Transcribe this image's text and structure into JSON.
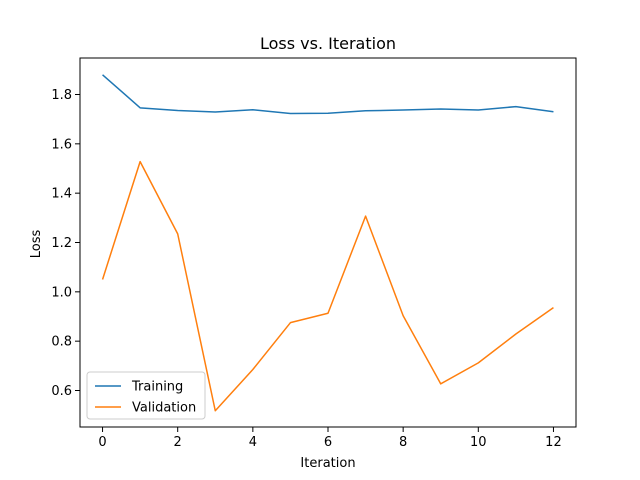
{
  "chart_data": {
    "type": "line",
    "title": "Loss vs. Iteration",
    "xlabel": "Iteration",
    "ylabel": "Loss",
    "xlim": [
      -0.6,
      12.6
    ],
    "ylim": [
      0.452,
      1.948
    ],
    "xticks": [
      0,
      2,
      4,
      6,
      8,
      10,
      12
    ],
    "yticks": [
      0.6,
      0.8,
      1.0,
      1.2,
      1.4,
      1.6,
      1.8
    ],
    "xtick_labels": [
      "0",
      "2",
      "4",
      "6",
      "8",
      "10",
      "12"
    ],
    "ytick_labels": [
      "0.6",
      "0.8",
      "1.0",
      "1.2",
      "1.4",
      "1.6",
      "1.8"
    ],
    "grid": false,
    "legend_position": "lower-left",
    "x": [
      0,
      1,
      2,
      3,
      4,
      5,
      6,
      7,
      8,
      9,
      10,
      11,
      12
    ],
    "series": [
      {
        "name": "Training",
        "color": "#1f77b4",
        "values": [
          1.88,
          1.746,
          1.735,
          1.729,
          1.738,
          1.723,
          1.724,
          1.734,
          1.737,
          1.741,
          1.737,
          1.751,
          1.73
        ]
      },
      {
        "name": "Validation",
        "color": "#ff7f0e",
        "values": [
          1.05,
          1.528,
          1.235,
          0.518,
          0.685,
          0.875,
          0.913,
          1.307,
          0.903,
          0.627,
          0.712,
          0.829,
          0.936
        ]
      }
    ]
  }
}
